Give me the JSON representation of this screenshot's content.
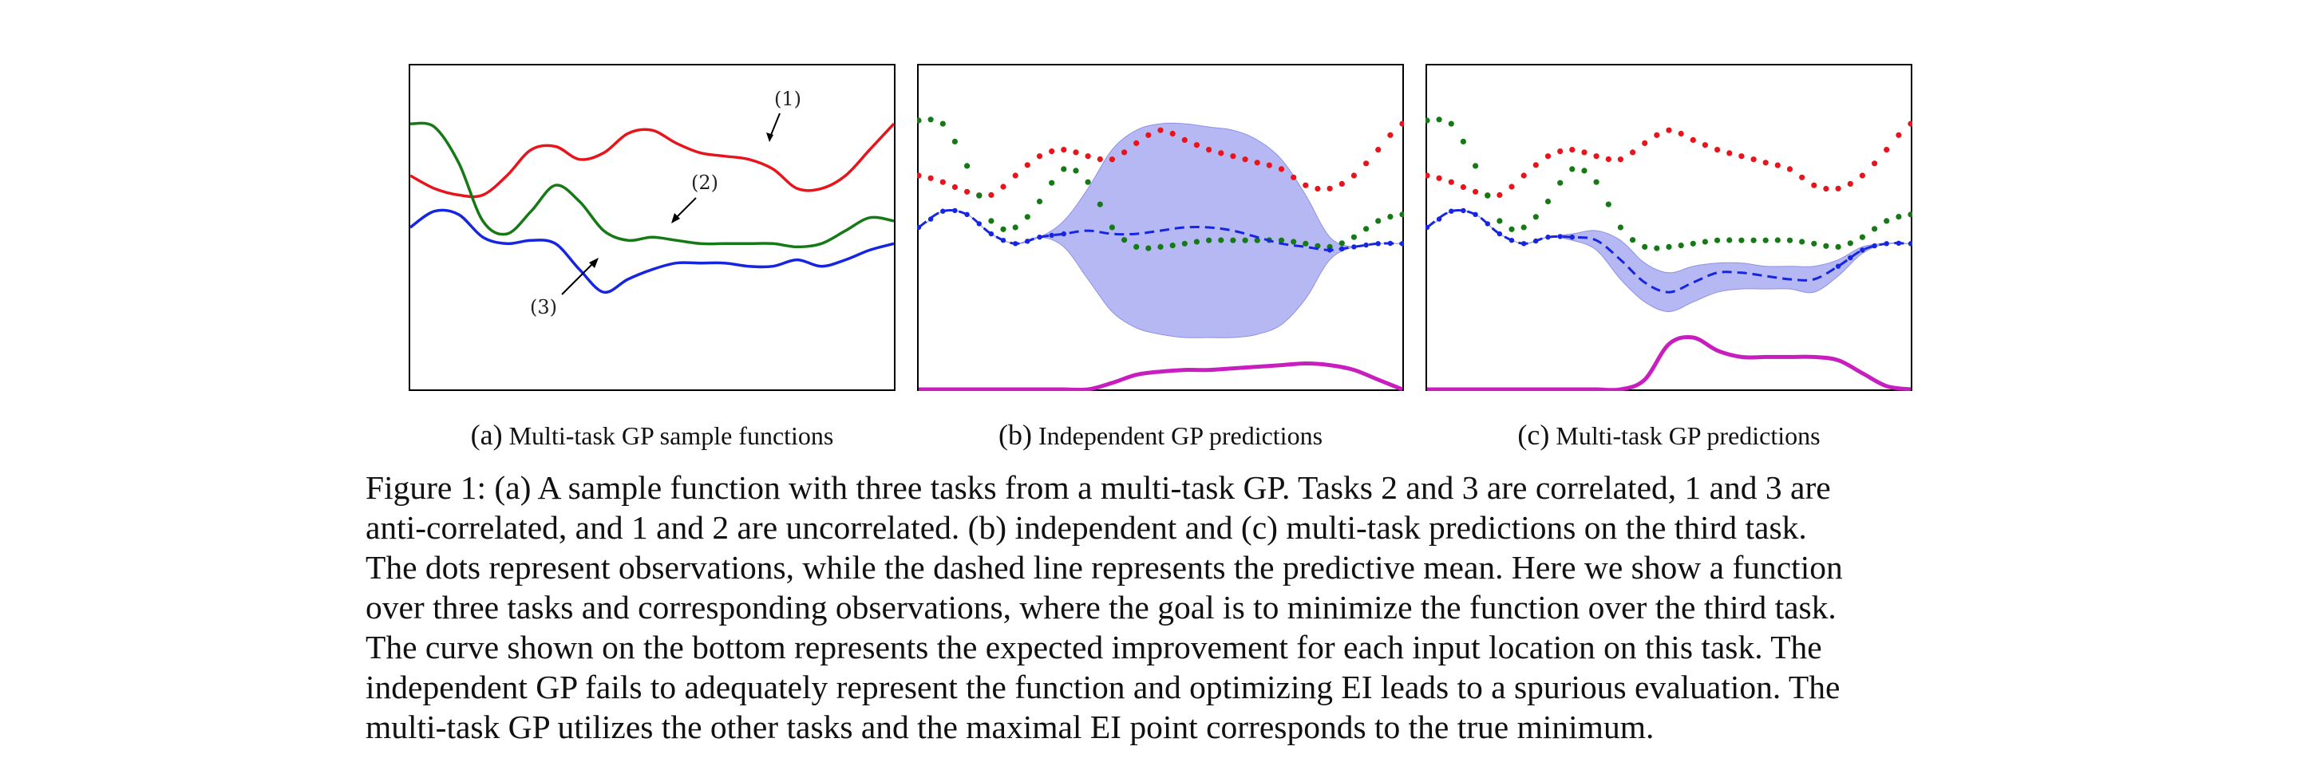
{
  "figure": {
    "panels": [
      {
        "id": "a",
        "tag": "(a)",
        "caption": "Multi-task GP sample functions",
        "annotations": [
          "(1)",
          "(2)",
          "(3)"
        ]
      },
      {
        "id": "b",
        "tag": "(b)",
        "caption": "Independent GP predictions"
      },
      {
        "id": "c",
        "tag": "(c)",
        "caption": "Multi-task GP predictions"
      }
    ],
    "caption_lines": [
      "Figure 1: (a) A sample function with three tasks from a multi-task GP. Tasks 2 and 3 are correlated, 1 and 3 are",
      "anti-correlated, and 1 and 2 are uncorrelated. (b) independent and (c) multi-task predictions on the third task.",
      "The dots represent observations, while the dashed line represents the predictive mean. Here we show a function",
      "over three tasks and corresponding observations, where the goal is to minimize the function over the third task.",
      "The curve shown on the bottom represents the expected improvement for each input location on this task. The",
      "independent GP fails to adequately represent the function and optimizing EI leads to a spurious evaluation. The",
      "multi-task GP utilizes the other tasks and the maximal EI point corresponds to the true minimum."
    ]
  },
  "colors": {
    "task1": "#e8141c",
    "task2": "#157a15",
    "task3": "#1626e0",
    "band": "#aeb0f2",
    "ei": "#c81ec0",
    "frame": "#000000"
  },
  "chart_data": [
    {
      "type": "line",
      "panel": "a",
      "x": [
        0,
        0.05,
        0.1,
        0.15,
        0.2,
        0.25,
        0.3,
        0.35,
        0.4,
        0.45,
        0.5,
        0.55,
        0.6,
        0.65,
        0.7,
        0.75,
        0.8,
        0.85,
        0.9,
        0.95,
        1.0
      ],
      "series": [
        {
          "name": "(1)",
          "values": [
            0.66,
            0.62,
            0.6,
            0.6,
            0.66,
            0.74,
            0.75,
            0.71,
            0.73,
            0.79,
            0.8,
            0.76,
            0.73,
            0.72,
            0.71,
            0.68,
            0.62,
            0.62,
            0.66,
            0.74,
            0.82
          ]
        },
        {
          "name": "(2)",
          "values": [
            0.82,
            0.81,
            0.7,
            0.52,
            0.48,
            0.55,
            0.63,
            0.58,
            0.49,
            0.46,
            0.47,
            0.46,
            0.45,
            0.45,
            0.45,
            0.45,
            0.44,
            0.45,
            0.49,
            0.53,
            0.52
          ]
        },
        {
          "name": "(3)",
          "values": [
            0.5,
            0.55,
            0.54,
            0.47,
            0.45,
            0.46,
            0.45,
            0.37,
            0.3,
            0.34,
            0.37,
            0.39,
            0.39,
            0.39,
            0.38,
            0.38,
            0.4,
            0.38,
            0.4,
            0.43,
            0.45
          ]
        }
      ]
    },
    {
      "type": "line",
      "panel": "b",
      "x": [
        0,
        0.05,
        0.1,
        0.15,
        0.2,
        0.25,
        0.3,
        0.35,
        0.4,
        0.45,
        0.5,
        0.55,
        0.6,
        0.65,
        0.7,
        0.75,
        0.8,
        0.85,
        0.9,
        0.95,
        1.0
      ],
      "series": [
        {
          "name": "task 1 observations",
          "values": [
            0.66,
            0.64,
            0.61,
            0.6,
            0.66,
            0.72,
            0.74,
            0.72,
            0.71,
            0.76,
            0.8,
            0.77,
            0.74,
            0.72,
            0.7,
            0.68,
            0.63,
            0.62,
            0.66,
            0.74,
            0.82
          ]
        },
        {
          "name": "task 2 observations",
          "values": [
            0.83,
            0.82,
            0.69,
            0.52,
            0.5,
            0.58,
            0.68,
            0.64,
            0.5,
            0.44,
            0.44,
            0.45,
            0.46,
            0.46,
            0.46,
            0.46,
            0.45,
            0.44,
            0.47,
            0.52,
            0.54
          ]
        },
        {
          "name": "predictive mean",
          "values": [
            0.5,
            0.55,
            0.54,
            0.48,
            0.45,
            0.47,
            0.48,
            0.49,
            0.48,
            0.48,
            0.49,
            0.5,
            0.5,
            0.49,
            0.47,
            0.45,
            0.44,
            0.43,
            0.44,
            0.45,
            0.45
          ]
        },
        {
          "name": "band upper",
          "values": [
            0.5,
            0.55,
            0.54,
            0.48,
            0.45,
            0.47,
            0.52,
            0.62,
            0.74,
            0.8,
            0.82,
            0.82,
            0.81,
            0.8,
            0.77,
            0.71,
            0.6,
            0.47,
            0.44,
            0.45,
            0.45
          ]
        },
        {
          "name": "band lower",
          "values": [
            0.5,
            0.55,
            0.54,
            0.48,
            0.45,
            0.47,
            0.44,
            0.34,
            0.24,
            0.19,
            0.17,
            0.16,
            0.16,
            0.16,
            0.17,
            0.2,
            0.28,
            0.4,
            0.44,
            0.45,
            0.45
          ]
        },
        {
          "name": "expected improvement",
          "values": [
            0,
            0,
            0,
            0,
            0,
            0,
            0,
            0,
            0.02,
            0.045,
            0.055,
            0.06,
            0.06,
            0.065,
            0.07,
            0.075,
            0.08,
            0.075,
            0.06,
            0.03,
            0
          ]
        }
      ]
    },
    {
      "type": "line",
      "panel": "c",
      "x": [
        0,
        0.05,
        0.1,
        0.15,
        0.2,
        0.25,
        0.3,
        0.35,
        0.4,
        0.45,
        0.5,
        0.55,
        0.6,
        0.65,
        0.7,
        0.75,
        0.8,
        0.85,
        0.9,
        0.95,
        1.0
      ],
      "series": [
        {
          "name": "task 1 observations",
          "values": [
            0.66,
            0.64,
            0.61,
            0.6,
            0.66,
            0.72,
            0.74,
            0.72,
            0.71,
            0.76,
            0.8,
            0.77,
            0.74,
            0.72,
            0.7,
            0.68,
            0.63,
            0.62,
            0.66,
            0.74,
            0.82
          ]
        },
        {
          "name": "task 2 observations",
          "values": [
            0.83,
            0.82,
            0.69,
            0.52,
            0.5,
            0.58,
            0.68,
            0.64,
            0.5,
            0.44,
            0.44,
            0.45,
            0.46,
            0.46,
            0.46,
            0.46,
            0.45,
            0.44,
            0.47,
            0.52,
            0.54
          ]
        },
        {
          "name": "predictive mean",
          "values": [
            0.5,
            0.55,
            0.54,
            0.48,
            0.45,
            0.47,
            0.47,
            0.46,
            0.4,
            0.33,
            0.3,
            0.33,
            0.36,
            0.36,
            0.35,
            0.34,
            0.34,
            0.38,
            0.43,
            0.45,
            0.45
          ]
        },
        {
          "name": "band upper",
          "values": [
            0.5,
            0.55,
            0.54,
            0.48,
            0.45,
            0.47,
            0.48,
            0.49,
            0.46,
            0.39,
            0.36,
            0.38,
            0.39,
            0.39,
            0.38,
            0.38,
            0.38,
            0.4,
            0.44,
            0.45,
            0.45
          ]
        },
        {
          "name": "band lower",
          "values": [
            0.5,
            0.55,
            0.54,
            0.48,
            0.45,
            0.47,
            0.46,
            0.43,
            0.34,
            0.27,
            0.24,
            0.27,
            0.3,
            0.31,
            0.31,
            0.31,
            0.3,
            0.35,
            0.42,
            0.45,
            0.45
          ]
        },
        {
          "name": "expected improvement",
          "values": [
            0,
            0,
            0,
            0,
            0,
            0,
            0,
            0,
            0,
            0.03,
            0.14,
            0.16,
            0.12,
            0.1,
            0.1,
            0.1,
            0.1,
            0.09,
            0.05,
            0.01,
            0
          ]
        }
      ]
    }
  ]
}
